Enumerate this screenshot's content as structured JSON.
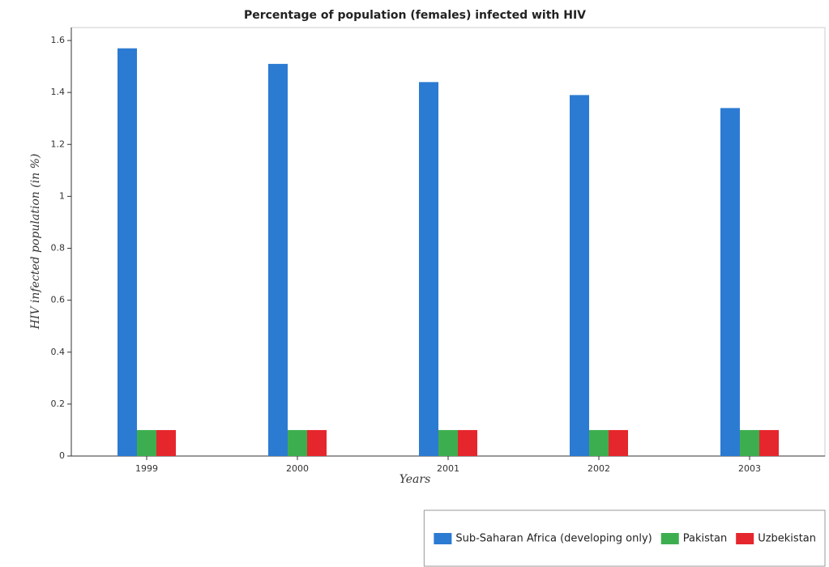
{
  "chart_data": {
    "type": "bar",
    "title": "Percentage of population (females) infected with HIV",
    "xlabel": "Years",
    "ylabel": "HIV infected population (in %)",
    "categories": [
      "1999",
      "2000",
      "2001",
      "2002",
      "2003"
    ],
    "series": [
      {
        "name": "Sub-Saharan Africa (developing only)",
        "color": "#2b7bd2",
        "values": [
          1.57,
          1.51,
          1.44,
          1.39,
          1.34
        ]
      },
      {
        "name": "Pakistan",
        "color": "#3dae4f",
        "values": [
          0.1,
          0.1,
          0.1,
          0.1,
          0.1
        ]
      },
      {
        "name": "Uzbekistan",
        "color": "#e5262c",
        "values": [
          0.1,
          0.1,
          0.1,
          0.1,
          0.1
        ]
      }
    ],
    "ylim": [
      0,
      1.65
    ],
    "yticks": [
      0,
      0.2,
      0.4,
      0.6,
      0.8,
      1,
      1.2,
      1.4,
      1.6
    ],
    "grid": false,
    "legend": "bottom-right"
  }
}
